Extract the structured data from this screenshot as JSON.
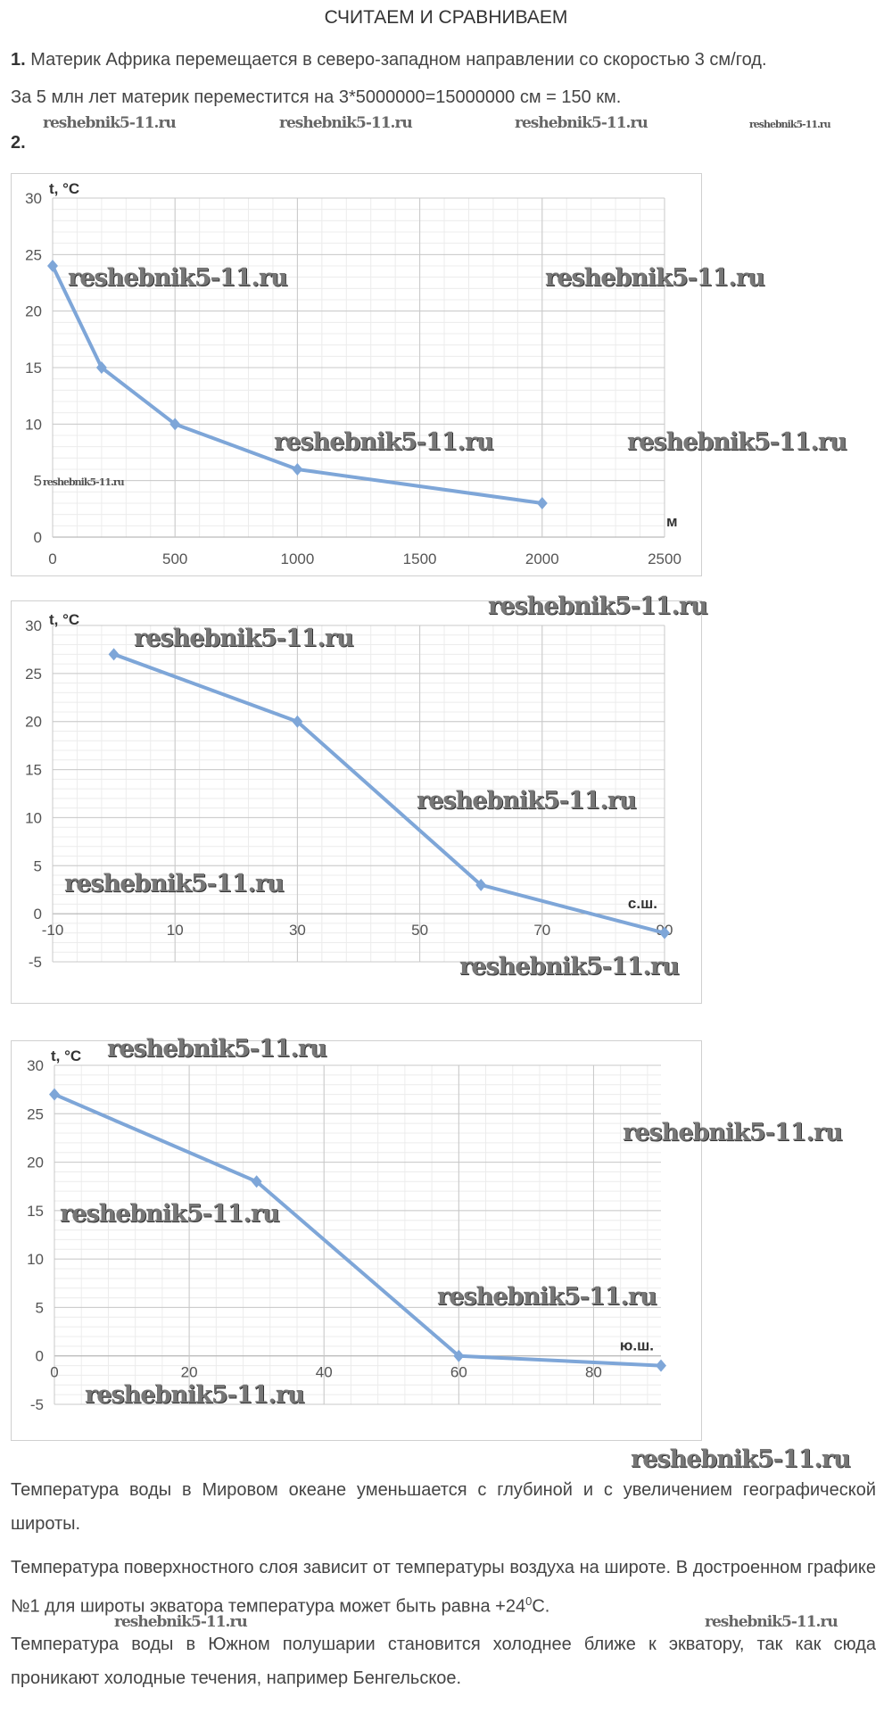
{
  "title": "СЧИТАЕМ И СРАВНИВАЕМ",
  "task1": {
    "number": "1.",
    "line1": "Материк Африка перемещается в северо-западном направлении со скоростью 3 см/год.",
    "line2": "За 5 млн лет материк переместится на 3*5000000=15000000 см = 150 км."
  },
  "task2": {
    "number": "2."
  },
  "watermark": "reshebnik5-11.ru",
  "chart_data": [
    {
      "type": "line",
      "ylabel": "t, °C",
      "xlabel": "м",
      "x": [
        0,
        200,
        500,
        1000,
        2000
      ],
      "values": [
        24,
        15,
        10,
        6,
        3
      ],
      "xlim": [
        0,
        2500
      ],
      "ylim": [
        0,
        30
      ],
      "xticks": [
        0,
        500,
        1000,
        1500,
        2000,
        2500
      ],
      "yticks": [
        0,
        5,
        10,
        15,
        20,
        25,
        30
      ],
      "grid": true,
      "color": "#7ea6d8"
    },
    {
      "type": "line",
      "ylabel": "t, °C",
      "xlabel": "с.ш.",
      "x": [
        0,
        30,
        60,
        90
      ],
      "values": [
        27,
        20,
        3,
        -2
      ],
      "xlim": [
        -10,
        90
      ],
      "ylim": [
        -5,
        30
      ],
      "xticks": [
        -10,
        10,
        30,
        50,
        70,
        90
      ],
      "yticks": [
        -5,
        0,
        5,
        10,
        15,
        20,
        25,
        30
      ],
      "grid": true,
      "color": "#7ea6d8"
    },
    {
      "type": "line",
      "ylabel": "t, °C",
      "xlabel": "ю.ш.",
      "x": [
        0,
        30,
        60,
        90
      ],
      "values": [
        27,
        18,
        0,
        -1
      ],
      "xlim": [
        0,
        90
      ],
      "ylim": [
        -5,
        30
      ],
      "xticks": [
        0,
        20,
        40,
        60,
        80
      ],
      "yticks": [
        -5,
        0,
        5,
        10,
        15,
        20,
        25,
        30
      ],
      "grid": true,
      "color": "#7ea6d8"
    }
  ],
  "conclusions": [
    "Температура воды в Мировом океане уменьшается с глубиной и с увеличением географической широты.",
    "Температура поверхностного слоя зависит от температуры воздуха на широте. В достроенном графике №1 для широты экватора температура может быть равна +24",
    "Температура воды в Южном полушарии становится холоднее ближе к экватору, так как сюда проникают холодные течения, например Бенгельское."
  ],
  "degree_sup": "0",
  "degree_unit": "C."
}
